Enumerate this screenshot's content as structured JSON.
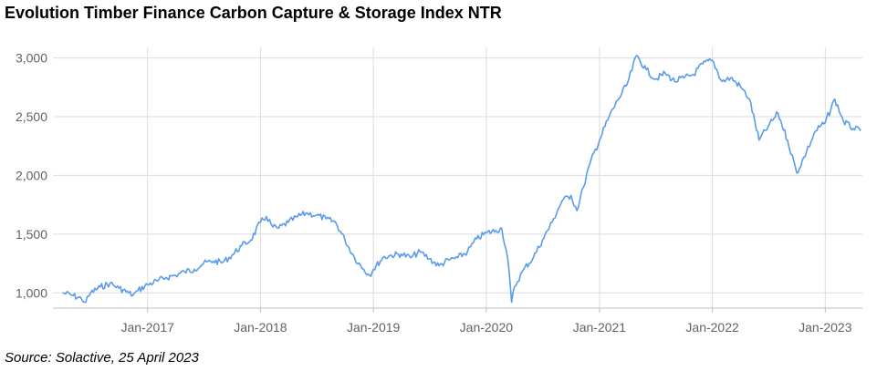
{
  "title": "Evolution Timber Finance Carbon Capture & Storage Index NTR",
  "source": "Source: Solactive, 25 April 2023",
  "colors": {
    "line": "#5a9bea",
    "grid": "#dcdcdc",
    "axis": "#bdbdbd",
    "tick_text": "#5f6368"
  },
  "chart_data": {
    "type": "line",
    "title": "Evolution Timber Finance Carbon Capture & Storage Index NTR",
    "xlabel": "",
    "ylabel": "",
    "ylim": [
      870,
      3090
    ],
    "xlim": [
      "2016-03-01",
      "2023-05-01"
    ],
    "grid": true,
    "y_ticks": [
      1000,
      1500,
      2000,
      2500,
      3000
    ],
    "y_tick_labels": [
      "1,000",
      "1,500",
      "2,000",
      "2,500",
      "3,000"
    ],
    "x_ticks": [
      "2017-01-01",
      "2018-01-01",
      "2019-01-01",
      "2020-01-01",
      "2021-01-01",
      "2022-01-01",
      "2023-01-01"
    ],
    "x_tick_labels": [
      "Jan-2017",
      "Jan-2018",
      "Jan-2019",
      "Jan-2020",
      "Jan-2021",
      "Jan-2022",
      "Jan-2023"
    ],
    "series": [
      {
        "values": [
          [
            "2016-04-01",
            1000
          ],
          [
            "2016-05-01",
            980
          ],
          [
            "2016-06-01",
            950
          ],
          [
            "2016-06-15",
            920
          ],
          [
            "2016-07-01",
            1000
          ],
          [
            "2016-08-01",
            1050
          ],
          [
            "2016-09-01",
            1080
          ],
          [
            "2016-10-01",
            1040
          ],
          [
            "2016-11-01",
            1000
          ],
          [
            "2016-11-15",
            980
          ],
          [
            "2016-12-01",
            1020
          ],
          [
            "2017-01-01",
            1070
          ],
          [
            "2017-02-01",
            1100
          ],
          [
            "2017-03-01",
            1130
          ],
          [
            "2017-04-01",
            1150
          ],
          [
            "2017-05-01",
            1180
          ],
          [
            "2017-06-01",
            1200
          ],
          [
            "2017-07-01",
            1250
          ],
          [
            "2017-08-01",
            1270
          ],
          [
            "2017-09-01",
            1260
          ],
          [
            "2017-10-01",
            1320
          ],
          [
            "2017-11-01",
            1400
          ],
          [
            "2017-12-01",
            1450
          ],
          [
            "2018-01-01",
            1600
          ],
          [
            "2018-01-20",
            1650
          ],
          [
            "2018-02-10",
            1560
          ],
          [
            "2018-03-01",
            1550
          ],
          [
            "2018-04-01",
            1600
          ],
          [
            "2018-05-01",
            1650
          ],
          [
            "2018-06-01",
            1680
          ],
          [
            "2018-07-01",
            1660
          ],
          [
            "2018-08-01",
            1630
          ],
          [
            "2018-09-01",
            1600
          ],
          [
            "2018-10-01",
            1450
          ],
          [
            "2018-11-01",
            1300
          ],
          [
            "2018-12-01",
            1200
          ],
          [
            "2018-12-20",
            1150
          ],
          [
            "2019-01-01",
            1200
          ],
          [
            "2019-02-01",
            1300
          ],
          [
            "2019-03-01",
            1320
          ],
          [
            "2019-04-01",
            1330
          ],
          [
            "2019-05-01",
            1300
          ],
          [
            "2019-06-01",
            1350
          ],
          [
            "2019-07-01",
            1290
          ],
          [
            "2019-08-01",
            1230
          ],
          [
            "2019-09-01",
            1280
          ],
          [
            "2019-10-01",
            1300
          ],
          [
            "2019-11-01",
            1350
          ],
          [
            "2019-12-01",
            1460
          ],
          [
            "2020-01-01",
            1510
          ],
          [
            "2020-02-01",
            1530
          ],
          [
            "2020-02-20",
            1550
          ],
          [
            "2020-03-10",
            1300
          ],
          [
            "2020-03-23",
            920
          ],
          [
            "2020-04-01",
            1050
          ],
          [
            "2020-05-01",
            1200
          ],
          [
            "2020-06-01",
            1300
          ],
          [
            "2020-07-01",
            1450
          ],
          [
            "2020-08-01",
            1600
          ],
          [
            "2020-09-01",
            1780
          ],
          [
            "2020-10-01",
            1830
          ],
          [
            "2020-10-20",
            1700
          ],
          [
            "2020-11-10",
            1900
          ],
          [
            "2020-12-01",
            2100
          ],
          [
            "2021-01-01",
            2300
          ],
          [
            "2021-02-01",
            2500
          ],
          [
            "2021-03-01",
            2640
          ],
          [
            "2021-04-01",
            2780
          ],
          [
            "2021-05-01",
            3020
          ],
          [
            "2021-06-01",
            2900
          ],
          [
            "2021-07-01",
            2820
          ],
          [
            "2021-08-01",
            2870
          ],
          [
            "2021-09-01",
            2800
          ],
          [
            "2021-10-01",
            2830
          ],
          [
            "2021-11-01",
            2860
          ],
          [
            "2021-12-01",
            2950
          ],
          [
            "2022-01-01",
            2980
          ],
          [
            "2022-02-01",
            2800
          ],
          [
            "2022-03-01",
            2830
          ],
          [
            "2022-04-01",
            2760
          ],
          [
            "2022-05-01",
            2650
          ],
          [
            "2022-06-01",
            2300
          ],
          [
            "2022-07-01",
            2420
          ],
          [
            "2022-08-01",
            2530
          ],
          [
            "2022-09-01",
            2300
          ],
          [
            "2022-10-01",
            2020
          ],
          [
            "2022-11-01",
            2200
          ],
          [
            "2022-12-01",
            2380
          ],
          [
            "2023-01-01",
            2450
          ],
          [
            "2023-02-01",
            2650
          ],
          [
            "2023-03-01",
            2460
          ],
          [
            "2023-04-01",
            2400
          ],
          [
            "2023-04-25",
            2380
          ]
        ]
      }
    ]
  }
}
